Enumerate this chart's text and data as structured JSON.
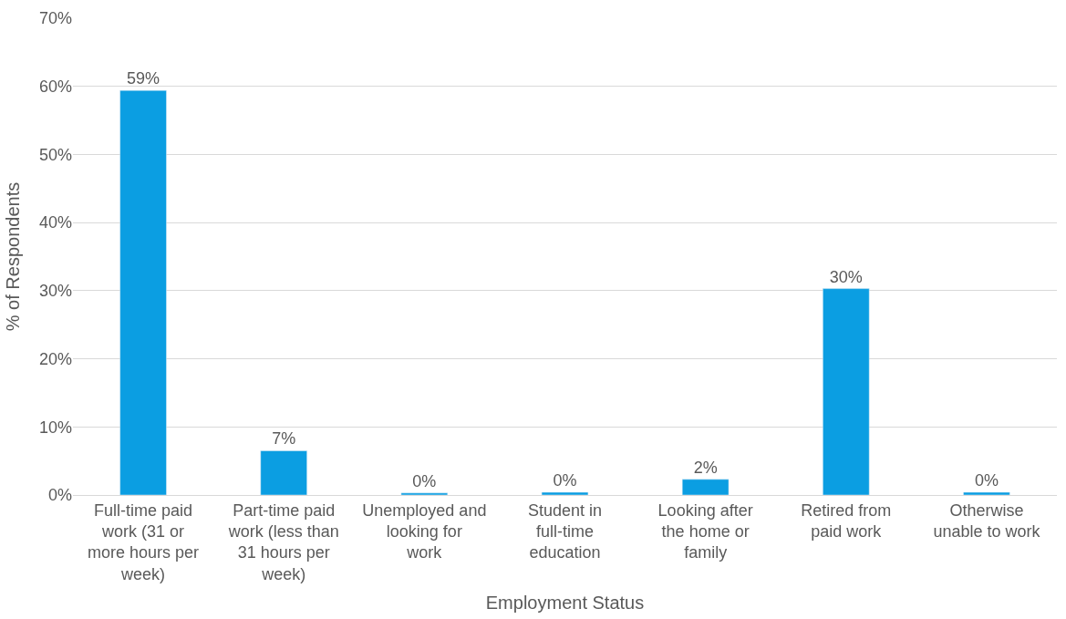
{
  "chart_data": {
    "type": "bar",
    "xlabel": "Employment Status",
    "ylabel": "% of Respondents",
    "categories": [
      "Full-time paid work (31 or more hours per week)",
      "Part-time paid work (less than 31 hours per week)",
      "Unemployed and looking for work",
      "Student in full-time education",
      "Looking after the home or family",
      "Retired from paid work",
      "Otherwise unable to work"
    ],
    "values": [
      59.4,
      6.5,
      0.3,
      0.4,
      2.3,
      30.3,
      0.4
    ],
    "value_labels": [
      "59%",
      "7%",
      "0%",
      "0%",
      "2%",
      "30%",
      "0%"
    ],
    "color": "#0b9ee2",
    "ylim": [
      0,
      70
    ],
    "yticks": [
      {
        "value": 0,
        "label": "0%"
      },
      {
        "value": 10,
        "label": "10%"
      },
      {
        "value": 20,
        "label": "20%"
      },
      {
        "value": 30,
        "label": "30%"
      },
      {
        "value": 40,
        "label": "40%"
      },
      {
        "value": 50,
        "label": "50%"
      },
      {
        "value": 60,
        "label": "60%"
      },
      {
        "value": 70,
        "label": "70%"
      }
    ],
    "grid": "y",
    "legend": false
  }
}
